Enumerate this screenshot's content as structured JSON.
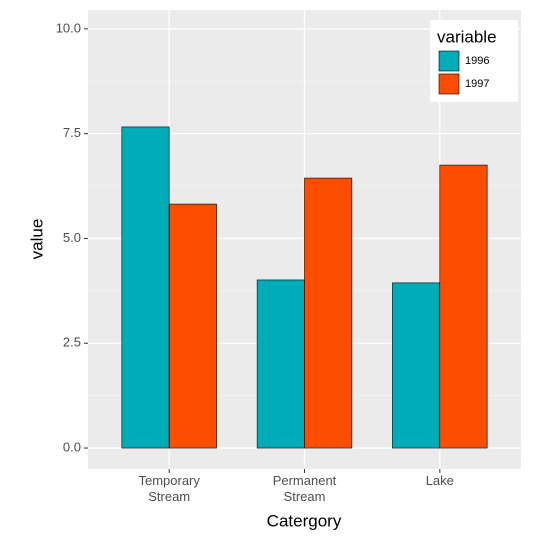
{
  "chart_data": {
    "type": "bar",
    "x_label": "Catergory",
    "y_label": "value",
    "categories": [
      "Temporary\nStream",
      "Permanent\nStream",
      "Lake"
    ],
    "series": [
      {
        "name": "1996",
        "color": "#00acb8",
        "values": [
          7.66,
          4.01,
          3.94
        ]
      },
      {
        "name": "1997",
        "color": "#fd4d00",
        "values": [
          5.82,
          6.44,
          6.75
        ]
      }
    ],
    "ylim": [
      -0.5,
      10.45
    ],
    "yticks": [
      {
        "value": 0,
        "label": "0.0"
      },
      {
        "value": 2.5,
        "label": "2.5"
      },
      {
        "value": 5,
        "label": "5.0"
      },
      {
        "value": 7.5,
        "label": "7.5"
      },
      {
        "value": 10,
        "label": "10.0"
      }
    ],
    "grid": true,
    "legend_title": "variable",
    "legend_position": "top-right"
  }
}
